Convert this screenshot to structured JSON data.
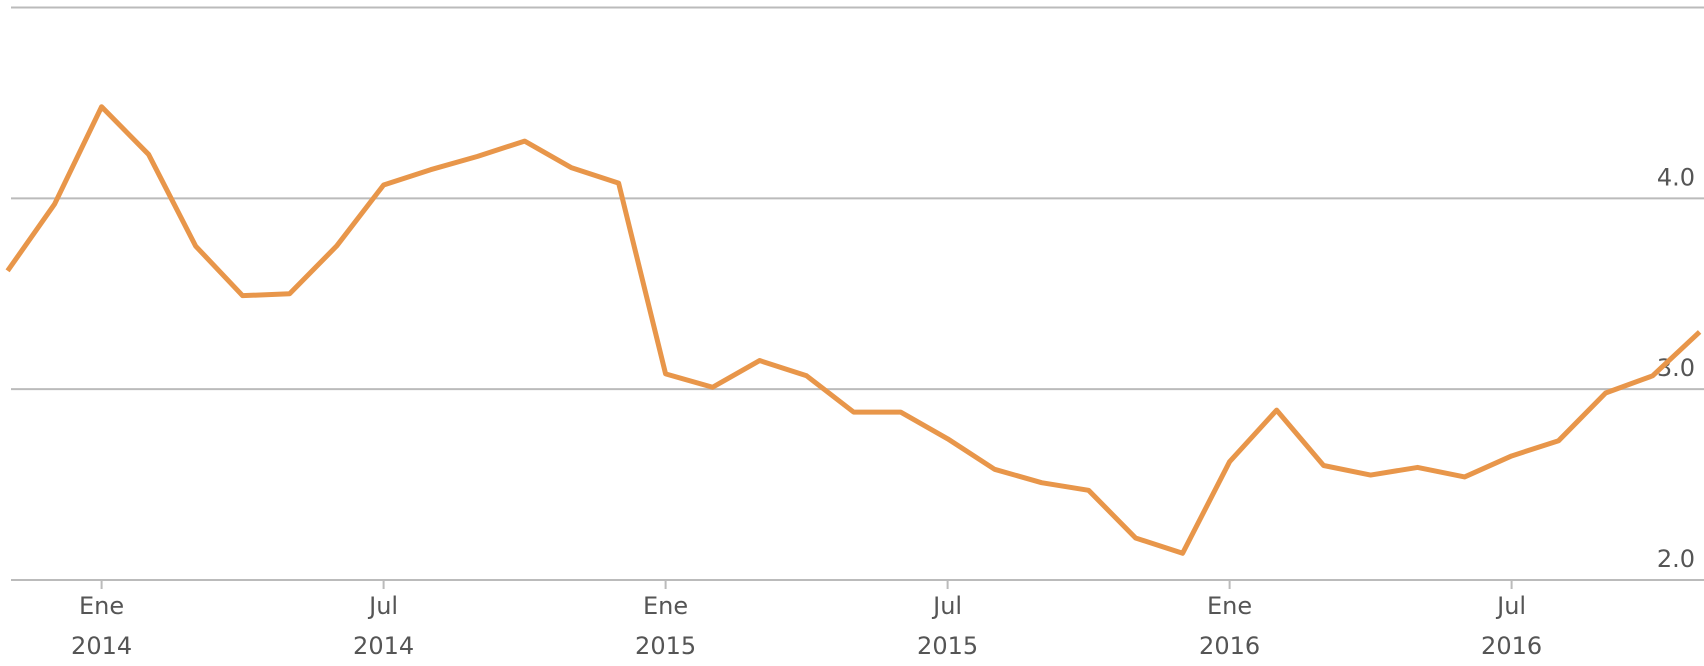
{
  "chart_data": {
    "type": "line",
    "x": [
      "2013-11",
      "2013-12",
      "2014-01",
      "2014-02",
      "2014-03",
      "2014-04",
      "2014-05",
      "2014-06",
      "2014-07",
      "2014-08",
      "2014-09",
      "2014-10",
      "2014-11",
      "2014-12",
      "2015-01",
      "2015-02",
      "2015-03",
      "2015-04",
      "2015-05",
      "2015-06",
      "2015-07",
      "2015-08",
      "2015-09",
      "2015-10",
      "2015-11",
      "2015-12",
      "2016-01",
      "2016-02",
      "2016-03",
      "2016-04",
      "2016-05",
      "2016-06",
      "2016-07",
      "2016-08",
      "2016-09",
      "2016-10",
      "2016-11"
    ],
    "series": [
      {
        "color": "#e8964a",
        "values": [
          3.62,
          3.97,
          4.48,
          4.23,
          3.75,
          3.49,
          3.5,
          3.75,
          4.07,
          4.15,
          4.22,
          4.3,
          4.16,
          4.08,
          3.08,
          3.01,
          3.15,
          3.07,
          2.88,
          2.88,
          2.74,
          2.58,
          2.51,
          2.47,
          2.22,
          2.14,
          2.62,
          2.89,
          2.6,
          2.55,
          2.59,
          2.54,
          2.65,
          2.73,
          2.98,
          3.07,
          3.3
        ]
      }
    ],
    "xticks": [
      {
        "value": "2014-01",
        "label": "Ene 2014"
      },
      {
        "value": "2014-07",
        "label": "Jul 2014"
      },
      {
        "value": "2015-01",
        "label": "Ene 2015"
      },
      {
        "value": "2015-07",
        "label": "Jul 2015"
      },
      {
        "value": "2016-01",
        "label": "Ene 2016"
      },
      {
        "value": "2016-07",
        "label": "Jul 2016"
      }
    ],
    "ylim": [
      2,
      5
    ],
    "yticks": [
      {
        "value": 2,
        "label": "2.0"
      },
      {
        "value": 3,
        "label": "3.0"
      },
      {
        "value": 4,
        "label": "4.0"
      }
    ],
    "grid": true
  }
}
